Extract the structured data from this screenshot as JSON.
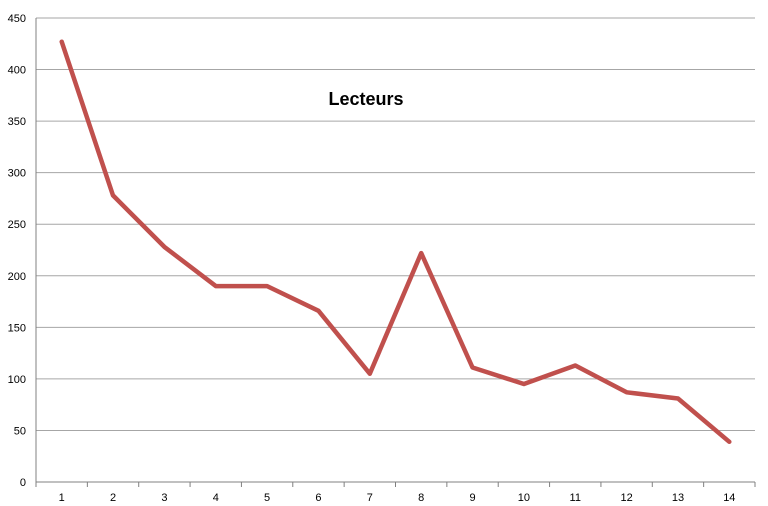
{
  "chart_data": {
    "type": "line",
    "title": "Lecteurs",
    "xlabel": "",
    "ylabel": "",
    "categories": [
      "1",
      "2",
      "3",
      "4",
      "5",
      "6",
      "7",
      "8",
      "9",
      "10",
      "11",
      "12",
      "13",
      "14"
    ],
    "series": [
      {
        "values": [
          427,
          278,
          228,
          190,
          190,
          166,
          105,
          222,
          111,
          95,
          113,
          87,
          81,
          39
        ],
        "color": "#C0504D"
      }
    ],
    "ylim": [
      0,
      450
    ],
    "yticks": [
      "0",
      "50",
      "100",
      "150",
      "200",
      "250",
      "300",
      "350",
      "400",
      "450"
    ],
    "grid": true,
    "legend": "none"
  }
}
